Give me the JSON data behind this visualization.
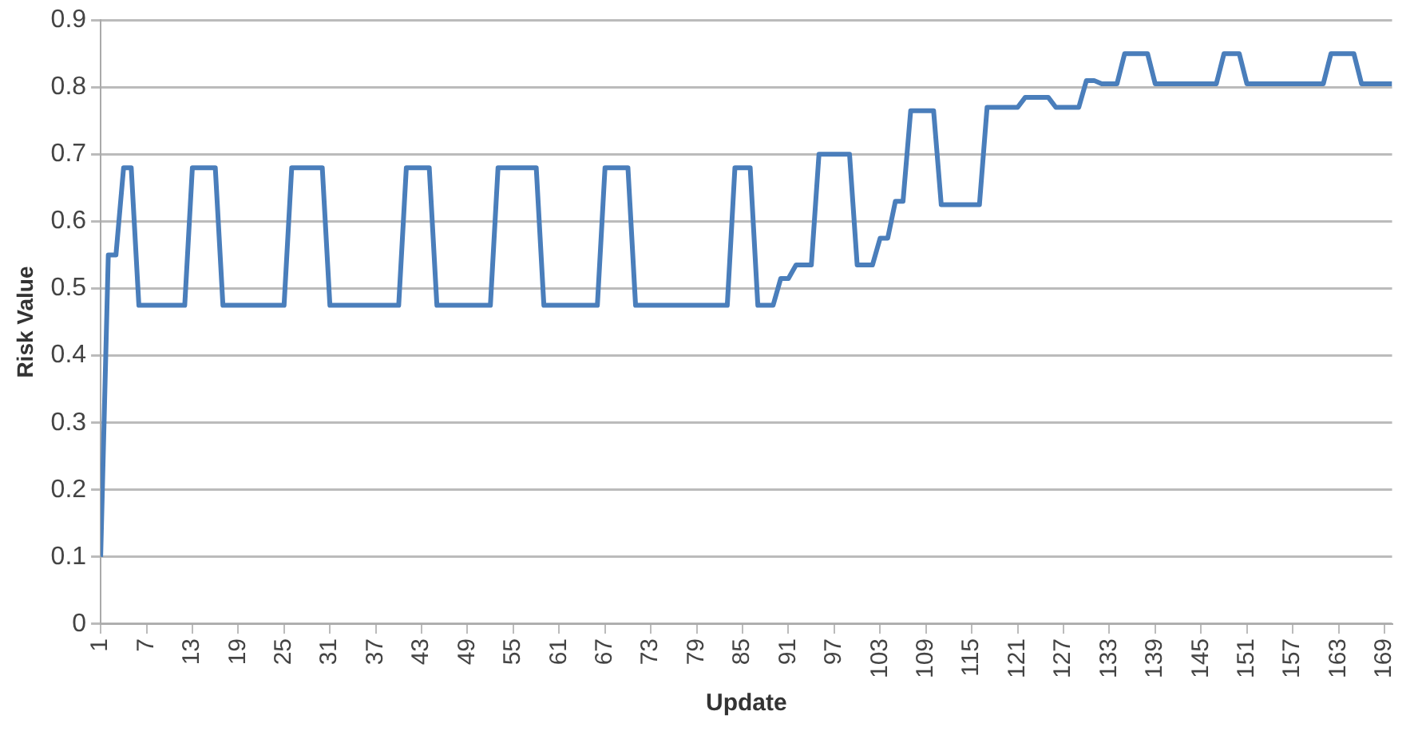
{
  "chart_data": {
    "type": "line",
    "xlabel": "Update",
    "ylabel": "Risk Value",
    "x": [
      1,
      2,
      3,
      4,
      5,
      6,
      12,
      13,
      16,
      17,
      25,
      26,
      30,
      31,
      40,
      41,
      44,
      45,
      52,
      53,
      58,
      59,
      66,
      67,
      70,
      71,
      83,
      84,
      86,
      87,
      89,
      90,
      91,
      92,
      94,
      95,
      99,
      100,
      102,
      103,
      104,
      105,
      106,
      107,
      110,
      111,
      116,
      117,
      121,
      122,
      125,
      126,
      129,
      130,
      131,
      132,
      134,
      135,
      138,
      139,
      147,
      148,
      150,
      151,
      161,
      162,
      165,
      166,
      170
    ],
    "series": [
      {
        "color": "#4a7ebb",
        "values": [
          0.1,
          0.55,
          0.55,
          0.68,
          0.68,
          0.475,
          0.475,
          0.68,
          0.68,
          0.475,
          0.475,
          0.68,
          0.68,
          0.475,
          0.475,
          0.68,
          0.68,
          0.475,
          0.475,
          0.68,
          0.68,
          0.475,
          0.475,
          0.68,
          0.68,
          0.475,
          0.475,
          0.68,
          0.68,
          0.475,
          0.475,
          0.515,
          0.515,
          0.535,
          0.535,
          0.7,
          0.7,
          0.535,
          0.535,
          0.575,
          0.575,
          0.63,
          0.63,
          0.765,
          0.765,
          0.625,
          0.625,
          0.77,
          0.77,
          0.785,
          0.785,
          0.77,
          0.77,
          0.81,
          0.81,
          0.805,
          0.805,
          0.85,
          0.85,
          0.805,
          0.805,
          0.85,
          0.85,
          0.805,
          0.805,
          0.85,
          0.85,
          0.805,
          0.805
        ]
      }
    ],
    "xlim": [
      1,
      170
    ],
    "xticks": [
      1,
      7,
      13,
      19,
      25,
      31,
      37,
      43,
      49,
      55,
      61,
      67,
      73,
      79,
      85,
      91,
      97,
      103,
      109,
      115,
      121,
      127,
      133,
      139,
      145,
      151,
      157,
      163,
      169
    ],
    "ylim": [
      0,
      0.9
    ],
    "yticks": [
      0,
      0.1,
      0.2,
      0.3,
      0.4,
      0.5,
      0.6,
      0.7,
      0.8,
      0.9
    ],
    "grid": "y",
    "legend": false,
    "marker": "none",
    "line_style": "solid"
  }
}
